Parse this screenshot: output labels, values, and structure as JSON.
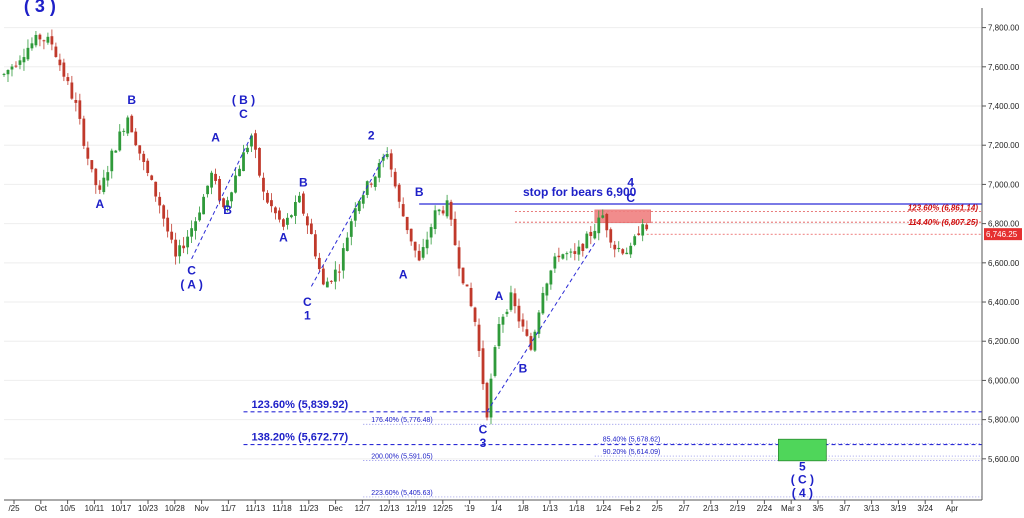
{
  "chart_data": {
    "type": "candlestick",
    "title": "",
    "xlabel": "",
    "ylabel": "",
    "ylim": [
      5390,
      7900
    ],
    "y_ticks": [
      5600,
      5800,
      6000,
      6200,
      6400,
      6600,
      6800,
      7000,
      7200,
      7400,
      7600,
      7800
    ],
    "y_tick_labels": [
      "5,600.00",
      "5,800.00",
      "6,000.00",
      "6,200.00",
      "6,400.00",
      "6,600.00",
      "6,800.00",
      "7,000.00",
      "7,200.00",
      "7,400.00",
      "7,600.00",
      "7,800.00"
    ],
    "x_tick_labels": [
      "/25",
      "Oct",
      "10/5",
      "10/11",
      "10/17",
      "10/23",
      "10/28",
      "Nov",
      "11/7",
      "11/13",
      "11/18",
      "11/23",
      "Dec",
      "12/7",
      "12/13",
      "12/19",
      "12/25",
      "'19",
      "1/4",
      "1/8",
      "1/13",
      "1/18",
      "1/24",
      "Feb 2",
      "2/5",
      "2/7",
      "2/13",
      "2/19",
      "2/24",
      "Mar 3",
      "3/5",
      "3/7",
      "3/13",
      "3/19",
      "3/24",
      "Apr"
    ],
    "last_price": {
      "label": "6,746.25",
      "value": 6746.25,
      "color": "#e53030"
    },
    "price_path": [
      {
        "x": 0,
        "y": 7560
      },
      {
        "x": 6,
        "y": 7700
      },
      {
        "x": 9,
        "y": 7750
      },
      {
        "x": 12,
        "y": 7720
      },
      {
        "x": 18,
        "y": 7400
      },
      {
        "x": 22,
        "y": 7050
      },
      {
        "x": 24,
        "y": 6950
      },
      {
        "x": 27,
        "y": 7150
      },
      {
        "x": 31,
        "y": 7350
      },
      {
        "x": 35,
        "y": 7100
      },
      {
        "x": 39,
        "y": 6900
      },
      {
        "x": 43,
        "y": 6620
      },
      {
        "x": 48,
        "y": 6820
      },
      {
        "x": 52,
        "y": 7050
      },
      {
        "x": 55,
        "y": 6880
      },
      {
        "x": 60,
        "y": 7150
      },
      {
        "x": 62,
        "y": 7250
      },
      {
        "x": 65,
        "y": 6950
      },
      {
        "x": 70,
        "y": 6780
      },
      {
        "x": 74,
        "y": 6920
      },
      {
        "x": 77,
        "y": 6740
      },
      {
        "x": 80,
        "y": 6480
      },
      {
        "x": 84,
        "y": 6580
      },
      {
        "x": 88,
        "y": 6900
      },
      {
        "x": 93,
        "y": 7050
      },
      {
        "x": 96,
        "y": 7170
      },
      {
        "x": 99,
        "y": 6900
      },
      {
        "x": 104,
        "y": 6600
      },
      {
        "x": 108,
        "y": 6850
      },
      {
        "x": 111,
        "y": 6890
      },
      {
        "x": 114,
        "y": 6600
      },
      {
        "x": 118,
        "y": 6300
      },
      {
        "x": 121,
        "y": 5840
      },
      {
        "x": 124,
        "y": 6300
      },
      {
        "x": 127,
        "y": 6420
      },
      {
        "x": 130,
        "y": 6260
      },
      {
        "x": 132,
        "y": 6160
      },
      {
        "x": 135,
        "y": 6470
      },
      {
        "x": 139,
        "y": 6650
      },
      {
        "x": 143,
        "y": 6630
      },
      {
        "x": 146,
        "y": 6720
      },
      {
        "x": 150,
        "y": 6840
      },
      {
        "x": 153,
        "y": 6680
      },
      {
        "x": 157,
        "y": 6660
      },
      {
        "x": 160,
        "y": 6820
      },
      {
        "x": 161,
        "y": 6746
      }
    ],
    "x_last": 161,
    "x_max": 245,
    "wave_labels": [
      {
        "text": "( 3 )",
        "x": 9,
        "y": 7880,
        "size": 18
      },
      {
        "text": "A",
        "x": 24,
        "y": 6880,
        "size": 12
      },
      {
        "text": "B",
        "x": 32,
        "y": 7410,
        "size": 12
      },
      {
        "text": "C",
        "x": 47,
        "y": 6540,
        "size": 12
      },
      {
        "text": "( A )",
        "x": 47,
        "y": 6470,
        "size": 12
      },
      {
        "text": "A",
        "x": 53,
        "y": 7220,
        "size": 12
      },
      {
        "text": "B",
        "x": 56,
        "y": 6850,
        "size": 12
      },
      {
        "text": "( B )",
        "x": 60,
        "y": 7410,
        "size": 12
      },
      {
        "text": "C",
        "x": 60,
        "y": 7340,
        "size": 12
      },
      {
        "text": "B",
        "x": 75,
        "y": 6990,
        "size": 12
      },
      {
        "text": "A",
        "x": 70,
        "y": 6710,
        "size": 12
      },
      {
        "text": "C",
        "x": 76,
        "y": 6380,
        "size": 12
      },
      {
        "text": "1",
        "x": 76,
        "y": 6310,
        "size": 12
      },
      {
        "text": "2",
        "x": 92,
        "y": 7230,
        "size": 12
      },
      {
        "text": "B",
        "x": 104,
        "y": 6940,
        "size": 12
      },
      {
        "text": "A",
        "x": 100,
        "y": 6520,
        "size": 12
      },
      {
        "text": "A",
        "x": 124,
        "y": 6410,
        "size": 12
      },
      {
        "text": "B",
        "x": 130,
        "y": 6040,
        "size": 12
      },
      {
        "text": "4",
        "x": 157,
        "y": 6990,
        "size": 12
      },
      {
        "text": "C",
        "x": 157,
        "y": 6910,
        "size": 12
      },
      {
        "text": "C",
        "x": 120,
        "y": 5730,
        "size": 12
      },
      {
        "text": "3",
        "x": 120,
        "y": 5660,
        "size": 12
      },
      {
        "text": "5",
        "x": 200,
        "y": 5540,
        "size": 12
      },
      {
        "text": "( C )",
        "x": 200,
        "y": 5475,
        "size": 12
      },
      {
        "text": "( 4 )",
        "x": 200,
        "y": 5405,
        "size": 12
      }
    ],
    "annotation": {
      "text": "stop for bears 6,900",
      "x": 130,
      "y": 6940
    },
    "stop_line": {
      "value": 6900,
      "x_start": 104
    },
    "fib_levels_top": [
      {
        "label": "123.60% (6,861.14)",
        "value": 6861.14
      },
      {
        "label": "114.40% (6,807.25)",
        "value": 6807.25
      }
    ],
    "fib_levels_bottom": [
      {
        "label": "123.60% (5,839.92)",
        "value": 5839.92,
        "style": "major"
      },
      {
        "label": "176.40% (5,776.48)",
        "value": 5776.48,
        "style": "minor"
      },
      {
        "label": "138.20% (5,672.77)",
        "value": 5672.77,
        "style": "major"
      },
      {
        "label": "85.40% (5,678.62)",
        "value": 5678.62,
        "style": "minor-right"
      },
      {
        "label": "90.20% (5,614.09)",
        "value": 5614.09,
        "style": "minor-right"
      },
      {
        "label": "200.00% (5,591.05)",
        "value": 5591.05,
        "style": "minor"
      },
      {
        "label": "223.60% (5,405.63)",
        "value": 5405.63,
        "style": "minor"
      }
    ],
    "target_box": {
      "value_high": 5700,
      "value_low": 5590,
      "x_start": 194,
      "x_end": 206
    },
    "resistance_box": {
      "value_high": 6870,
      "value_low": 6805,
      "x_start": 148,
      "x_end": 162
    }
  }
}
